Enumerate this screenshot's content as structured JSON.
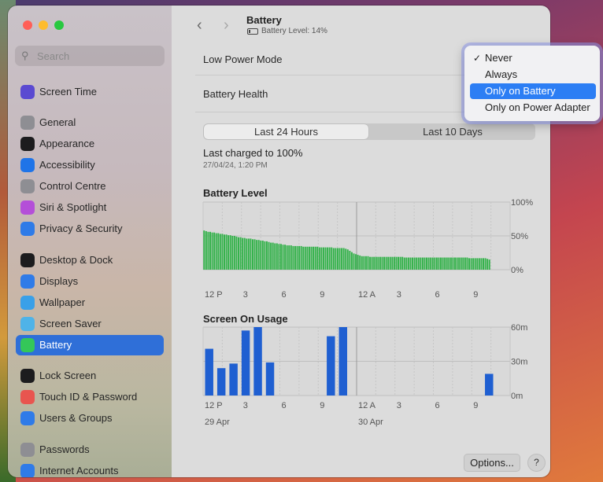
{
  "window": {
    "title": "Battery",
    "battery_level_text": "Battery Level: 14%"
  },
  "search": {
    "placeholder": "Search"
  },
  "sidebar": {
    "items": [
      {
        "label": "Screen Time",
        "icon": "hourglass-icon",
        "color": "#5b4ad1"
      },
      {
        "label": "General",
        "icon": "gear-icon",
        "color": "#8e8e93"
      },
      {
        "label": "Appearance",
        "icon": "appearance-icon",
        "color": "#1c1c1e"
      },
      {
        "label": "Accessibility",
        "icon": "accessibility-icon",
        "color": "#1f74e8"
      },
      {
        "label": "Control Centre",
        "icon": "control-centre-icon",
        "color": "#8e8e93"
      },
      {
        "label": "Siri & Spotlight",
        "icon": "siri-icon",
        "color": "#b44fd8"
      },
      {
        "label": "Privacy & Security",
        "icon": "hand-icon",
        "color": "#2f7be8"
      },
      {
        "label": "Desktop & Dock",
        "icon": "dock-icon",
        "color": "#1c1c1e"
      },
      {
        "label": "Displays",
        "icon": "sun-icon",
        "color": "#2f7be8"
      },
      {
        "label": "Wallpaper",
        "icon": "wallpaper-icon",
        "color": "#3aa0e8"
      },
      {
        "label": "Screen Saver",
        "icon": "screen-saver-icon",
        "color": "#4fb3e8"
      },
      {
        "label": "Battery",
        "icon": "battery-icon",
        "color": "#34c759",
        "selected": true
      },
      {
        "label": "Lock Screen",
        "icon": "lock-icon",
        "color": "#1c1c1e"
      },
      {
        "label": "Touch ID & Password",
        "icon": "fingerprint-icon",
        "color": "#e8554f"
      },
      {
        "label": "Users & Groups",
        "icon": "users-icon",
        "color": "#2f7be8"
      },
      {
        "label": "Passwords",
        "icon": "key-icon",
        "color": "#8e8e93"
      },
      {
        "label": "Internet Accounts",
        "icon": "at-icon",
        "color": "#2f7be8"
      }
    ]
  },
  "settings": {
    "low_power_mode": "Low Power Mode",
    "battery_health": "Battery Health"
  },
  "tabs": {
    "last24": "Last 24 Hours",
    "last10": "Last 10 Days"
  },
  "last_charged": {
    "text": "Last charged to 100%",
    "date": "27/04/24, 1:20 PM"
  },
  "chart_data": [
    {
      "type": "bar",
      "title": "Battery Level",
      "ylabel": "",
      "yticks": [
        "100%",
        "50%",
        "0%"
      ],
      "ylim": [
        0,
        100
      ],
      "xticks": [
        "12 P",
        "3",
        "6",
        "9",
        "12 A",
        "3",
        "6",
        "9"
      ],
      "color": "#33b24a",
      "values": [
        58,
        57,
        56,
        56,
        55,
        55,
        54,
        54,
        53,
        53,
        52,
        52,
        51,
        51,
        50,
        50,
        49,
        48,
        48,
        47,
        47,
        46,
        46,
        46,
        45,
        45,
        44,
        44,
        43,
        43,
        42,
        42,
        41,
        40,
        40,
        39,
        39,
        38,
        38,
        37,
        37,
        36,
        36,
        36,
        35,
        35,
        35,
        35,
        35,
        34,
        34,
        34,
        34,
        34,
        34,
        34,
        34,
        33,
        33,
        33,
        33,
        33,
        33,
        33,
        32,
        32,
        32,
        32,
        32,
        32,
        31,
        30,
        28,
        26,
        24,
        23,
        22,
        21,
        20,
        20,
        20,
        20,
        19,
        19,
        19,
        19,
        19,
        19,
        19,
        19,
        19,
        19,
        19,
        19,
        19,
        19,
        19,
        19,
        19,
        18,
        18,
        18,
        18,
        18,
        18,
        18,
        18,
        18,
        18,
        18,
        18,
        18,
        18,
        18,
        18,
        18,
        18,
        18,
        18,
        18,
        18,
        18,
        18,
        18,
        18,
        18,
        18,
        18,
        18,
        18,
        18,
        17,
        17,
        17,
        17,
        17,
        17,
        17,
        17,
        17,
        16,
        15
      ]
    },
    {
      "type": "bar",
      "title": "Screen On Usage",
      "yticks": [
        "60m",
        "30m",
        "0m"
      ],
      "ylim": [
        0,
        60
      ],
      "xticks": [
        "12 P",
        "3",
        "6",
        "9",
        "12 A",
        "3",
        "6",
        "9"
      ],
      "date_labels": [
        "29 Apr",
        "30 Apr"
      ],
      "color": "#1f5fd1",
      "values": [
        41,
        24,
        28,
        57,
        60,
        29,
        0,
        0,
        0,
        0,
        52,
        60,
        0,
        0,
        0,
        0,
        0,
        0,
        0,
        0,
        0,
        0,
        0,
        19
      ]
    }
  ],
  "footer": {
    "options": "Options...",
    "help": "?"
  },
  "popup": {
    "items": [
      {
        "label": "Never",
        "checked": true
      },
      {
        "label": "Always"
      },
      {
        "label": "Only on Battery",
        "highlighted": true
      },
      {
        "label": "Only on Power Adapter"
      }
    ]
  }
}
